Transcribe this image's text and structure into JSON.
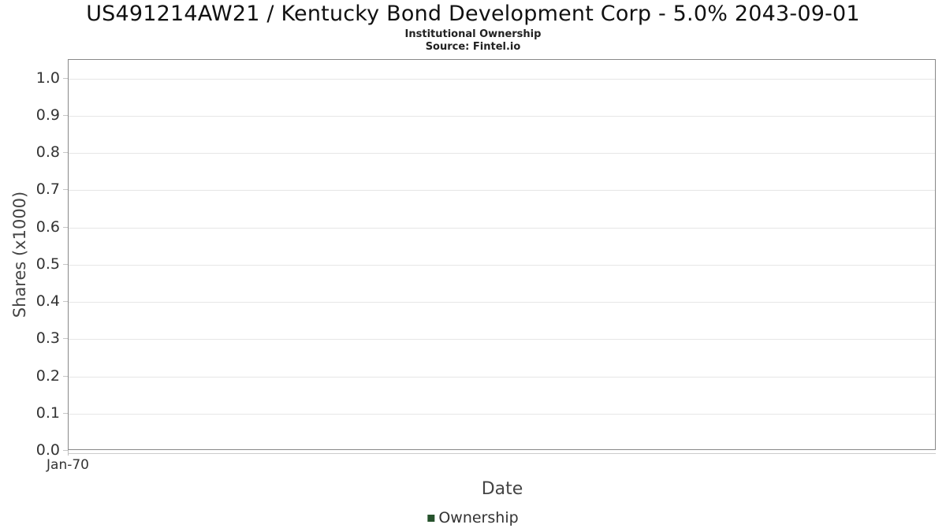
{
  "chart_data": {
    "type": "line",
    "title": "US491214AW21 / Kentucky Bond Development Corp - 5.0% 2043-09-01",
    "subtitle": "Institutional Ownership",
    "source": "Source: Fintel.io",
    "xlabel": "Date",
    "ylabel": "Shares (x1000)",
    "x_tick_labels": [
      "Jan-70"
    ],
    "y_tick_labels": [
      "1.0",
      "0.9",
      "0.8",
      "0.7",
      "0.6",
      "0.5",
      "0.4",
      "0.3",
      "0.2",
      "0.1",
      "0.0"
    ],
    "ylim": [
      0,
      1.05
    ],
    "grid": true,
    "legend": {
      "position": "bottom-center",
      "items": [
        {
          "label": "Ownership",
          "color": "#26522c"
        }
      ]
    },
    "series": [
      {
        "name": "Ownership",
        "x": [],
        "values": []
      }
    ],
    "colors": {
      "grid": "#e6e6e6",
      "plot_border": "#888888",
      "tick": "#c6c6c6",
      "text": "#333333"
    }
  }
}
